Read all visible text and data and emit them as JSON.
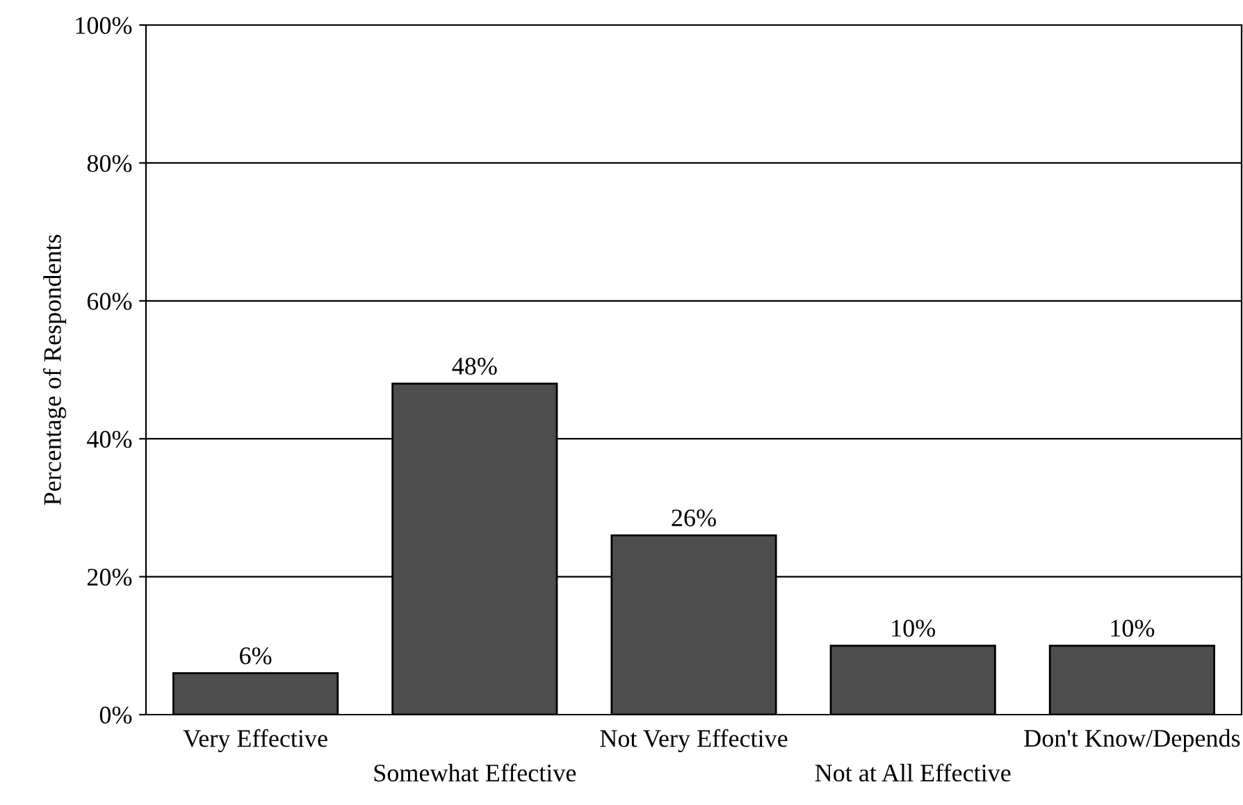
{
  "chart_data": {
    "type": "bar",
    "ylabel": "Percentage of Respondents",
    "categories": [
      "Very Effective",
      "Somewhat Effective",
      "Not Very Effective",
      "Not at All Effective",
      "Don't Know/Depends"
    ],
    "values": [
      6,
      48,
      26,
      10,
      10
    ],
    "value_labels": [
      "6%",
      "48%",
      "26%",
      "10%",
      "10%"
    ],
    "color": "#4d4d4d",
    "ylim": [
      0,
      100
    ],
    "yticks": [
      {
        "value": 0,
        "label": "0%"
      },
      {
        "value": 20,
        "label": "20%"
      },
      {
        "value": 40,
        "label": "40%"
      },
      {
        "value": 60,
        "label": "60%"
      },
      {
        "value": 80,
        "label": "80%"
      },
      {
        "value": 100,
        "label": "100%"
      }
    ],
    "grid": "y",
    "legend": false
  }
}
